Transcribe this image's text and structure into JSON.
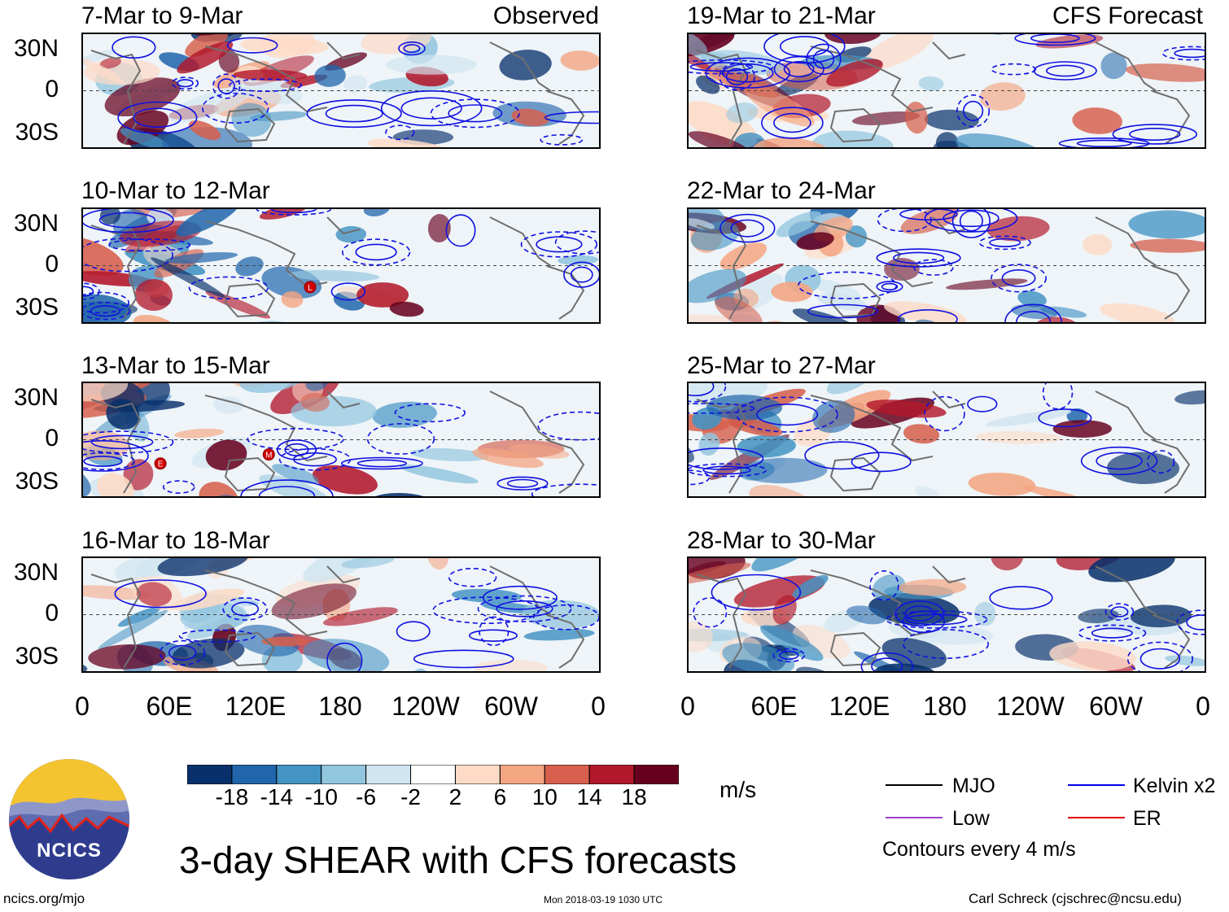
{
  "panels": [
    {
      "date_range": "7-Mar to 9-Mar",
      "tag": "Observed"
    },
    {
      "date_range": "10-Mar to 12-Mar",
      "tag": ""
    },
    {
      "date_range": "13-Mar to 15-Mar",
      "tag": ""
    },
    {
      "date_range": "16-Mar to 18-Mar",
      "tag": ""
    },
    {
      "date_range": "19-Mar to 21-Mar",
      "tag": "CFS Forecast"
    },
    {
      "date_range": "22-Mar to 24-Mar",
      "tag": ""
    },
    {
      "date_range": "25-Mar to 27-Mar",
      "tag": ""
    },
    {
      "date_range": "28-Mar to 30-Mar",
      "tag": ""
    }
  ],
  "lat_labels": [
    "30N",
    "0",
    "30S"
  ],
  "lon_labels": [
    "0",
    "60E",
    "120E",
    "180",
    "120W",
    "60W",
    "0"
  ],
  "colorbar": {
    "ticks": [
      "-18",
      "-14",
      "-10",
      "-6",
      "-2",
      "2",
      "6",
      "10",
      "14",
      "18"
    ],
    "colors": [
      "#08306b",
      "#2166ac",
      "#4393c3",
      "#92c5de",
      "#d1e5f0",
      "#ffffff",
      "#fddbc7",
      "#f4a582",
      "#d6604d",
      "#b2182b",
      "#67001f"
    ],
    "unit": "m/s"
  },
  "legend": {
    "items": [
      {
        "label": "MJO",
        "color": "#000000"
      },
      {
        "label": "Kelvin x2",
        "color": "#0000ee"
      },
      {
        "label": "Low",
        "color": "#a040d0"
      },
      {
        "label": "ER",
        "color": "#dd0000"
      }
    ],
    "note": "Contours every 4 m/s"
  },
  "logo_text": "NCICS",
  "main_title": "3-day SHEAR with CFS forecasts",
  "footer": {
    "url": "ncics.org/mjo",
    "timestamp": "Mon 2018-03-19 1030 UTC",
    "credit": "Carl Schreck (cjschrec@ncsu.edu)"
  },
  "storm_markers": [
    {
      "panel": 1,
      "label": "L"
    },
    {
      "panel": 2,
      "label": "E"
    },
    {
      "panel": 2,
      "label": "M"
    }
  ]
}
